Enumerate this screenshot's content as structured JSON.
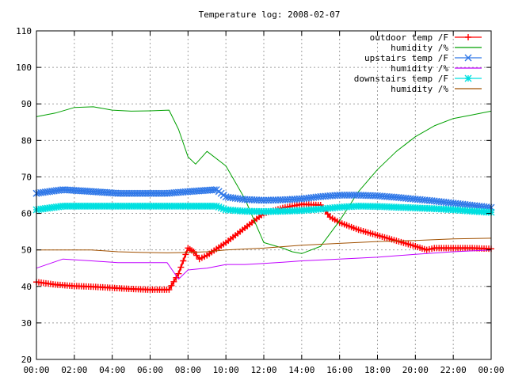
{
  "chart_data": {
    "type": "line",
    "title": "Temperature log: 2008-02-07",
    "xlabel": "",
    "ylabel": "",
    "xlim": [
      0,
      24
    ],
    "ylim": [
      20,
      110
    ],
    "x_ticks": [
      "00:00",
      "02:00",
      "04:00",
      "06:00",
      "08:00",
      "10:00",
      "12:00",
      "14:00",
      "16:00",
      "18:00",
      "20:00",
      "22:00",
      "00:00"
    ],
    "y_ticks": [
      "20",
      "30",
      "40",
      "50",
      "60",
      "70",
      "80",
      "90",
      "100",
      "110"
    ],
    "grid": true,
    "legend_position": "top-right",
    "series": [
      {
        "name": "outdoor temp /F",
        "color": "#ff0000",
        "marker": "plus",
        "x": [
          0,
          1,
          2,
          3,
          4,
          5,
          6,
          7,
          7.5,
          8,
          8.3,
          8.6,
          9,
          10,
          11,
          12,
          13,
          14,
          15,
          15.5,
          16,
          17,
          18,
          19,
          20,
          20.6,
          21,
          22,
          23,
          24
        ],
        "y": [
          41.2,
          40.5,
          40.1,
          39.9,
          39.6,
          39.3,
          39.1,
          39.1,
          43.5,
          50.5,
          49.5,
          47.5,
          48.5,
          52,
          56,
          60,
          61.5,
          62.5,
          62.3,
          59,
          57.5,
          55.5,
          54,
          52.5,
          51,
          50,
          50.5,
          50.5,
          50.5,
          50.3
        ]
      },
      {
        "name": "humidity /%",
        "color": "#00a000",
        "marker": "none",
        "x": [
          0,
          1,
          2,
          3,
          4,
          5,
          6,
          7,
          7.5,
          8,
          8.4,
          9,
          10,
          11,
          11.5,
          12,
          13,
          13.5,
          14,
          15,
          16,
          17,
          18,
          19,
          20,
          21,
          22,
          23,
          24
        ],
        "y": [
          86.5,
          87.5,
          89,
          89.2,
          88.3,
          88,
          88.1,
          88.3,
          83,
          75.5,
          73.5,
          77,
          73,
          64,
          58,
          52,
          50.5,
          49.5,
          49,
          51,
          58,
          66,
          72,
          77,
          81,
          84,
          86,
          87,
          88
        ]
      },
      {
        "name": "upstairs temp /F",
        "color": "#3078e8",
        "marker": "x",
        "x": [
          0,
          1.4,
          2.9,
          4.3,
          5.6,
          6.9,
          8.1,
          9.5,
          10,
          11,
          12,
          13,
          14,
          15,
          16,
          17,
          18,
          19,
          20,
          21,
          22,
          23,
          24
        ],
        "y": [
          65.5,
          66.5,
          66,
          65.5,
          65.5,
          65.5,
          66,
          66.5,
          64.5,
          63.8,
          63.6,
          63.7,
          64,
          64.6,
          65,
          65,
          64.8,
          64.4,
          63.9,
          63.4,
          62.8,
          62.2,
          61.6
        ]
      },
      {
        "name": "humidity /%",
        "color": "#c000ff",
        "marker": "none",
        "x": [
          0,
          1.4,
          2.9,
          4.3,
          5.6,
          6.9,
          7.5,
          8,
          9,
          10,
          11,
          12,
          13,
          14,
          16,
          18,
          20,
          22,
          24
        ],
        "y": [
          45,
          47.5,
          47,
          46.5,
          46.5,
          46.5,
          42,
          44.5,
          45,
          46,
          46,
          46.3,
          46.6,
          47,
          47.5,
          48,
          48.8,
          49.5,
          50
        ]
      },
      {
        "name": "downstairs temp /F",
        "color": "#00e0e0",
        "marker": "star",
        "x": [
          0,
          1.4,
          2.9,
          4.3,
          5.6,
          6.9,
          8.1,
          9.5,
          10,
          11,
          12,
          13,
          14,
          15,
          16,
          17,
          18,
          19,
          20,
          21,
          22,
          23,
          24
        ],
        "y": [
          61,
          62,
          62,
          62,
          62,
          62,
          62,
          62,
          61,
          60.6,
          60.5,
          60.6,
          60.8,
          61.2,
          61.7,
          62,
          61.9,
          61.7,
          61.5,
          61.3,
          61,
          60.6,
          60.3
        ]
      },
      {
        "name": "humidity /%",
        "color": "#a05000",
        "marker": "none",
        "x": [
          0,
          1.4,
          2.9,
          4.3,
          5.6,
          6.9,
          8,
          9,
          10,
          12,
          14,
          16,
          18,
          20,
          22,
          24
        ],
        "y": [
          50,
          50,
          50,
          49.5,
          49.3,
          49.2,
          49.3,
          49.5,
          50,
          50.5,
          51.3,
          51.8,
          52.3,
          52.6,
          53,
          53.2
        ]
      }
    ]
  }
}
